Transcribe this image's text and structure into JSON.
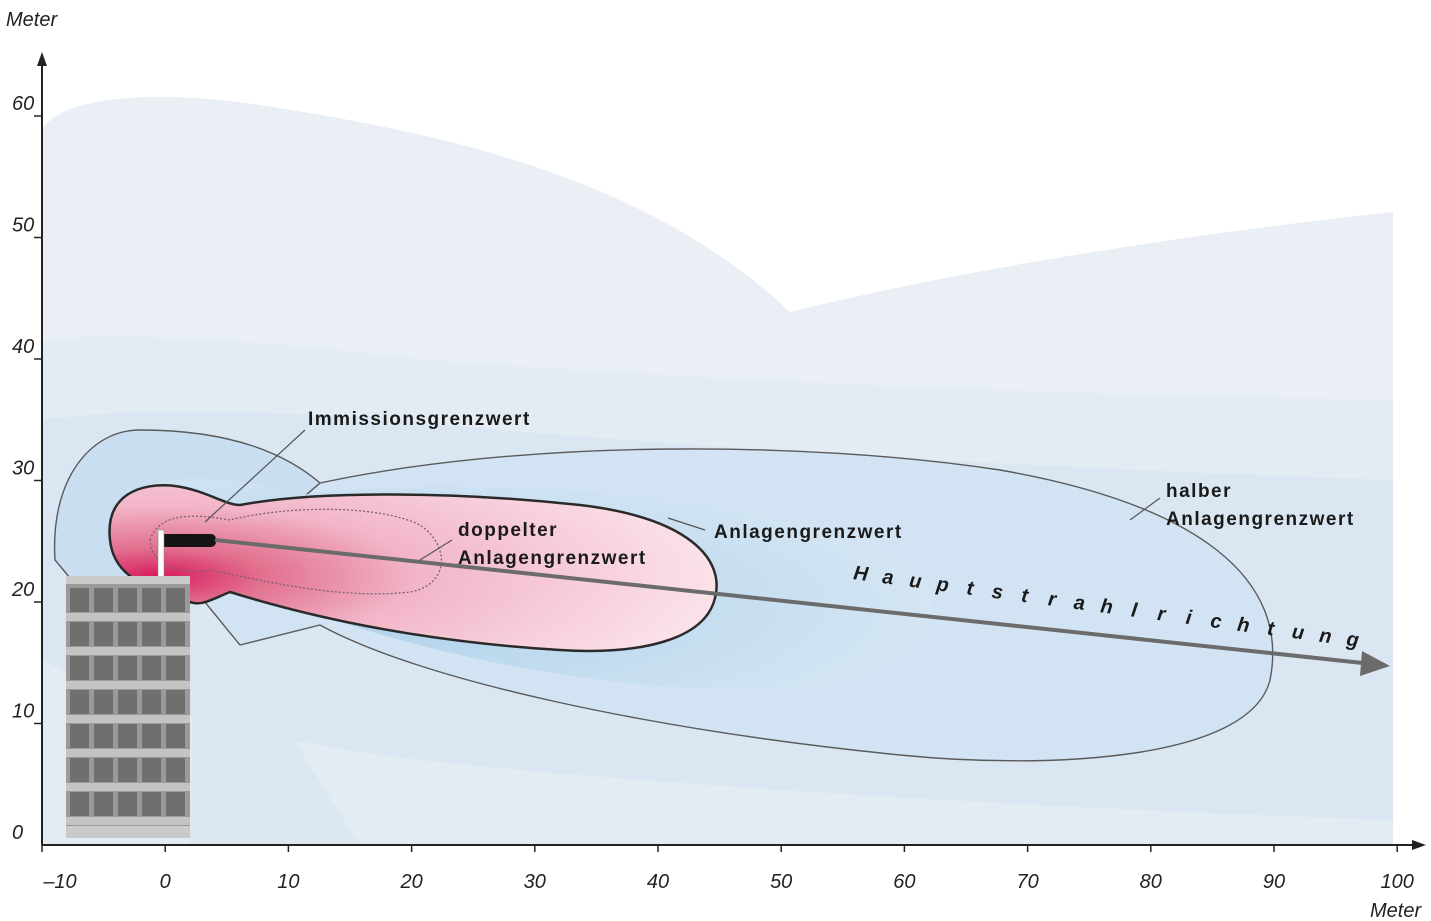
{
  "axes": {
    "y_unit": "Meter",
    "x_unit": "Meter",
    "x_ticks": [
      "–10",
      "0",
      "10",
      "20",
      "30",
      "40",
      "50",
      "60",
      "70",
      "80",
      "90",
      "100"
    ],
    "y_ticks": [
      "0",
      "10",
      "20",
      "30",
      "40",
      "50",
      "60"
    ]
  },
  "labels": {
    "immission": "Immissionsgrenzwert",
    "double_1": "doppelter",
    "double_2": "Anlagengrenzwert",
    "anlage": "Anlagengrenzwert",
    "half_1": "halber",
    "half_2": "Anlagengrenzwert",
    "main_beam": "Hauptstrahlrichtung"
  },
  "colors": {
    "pale_field": "#e8eef4",
    "light_blue": "#d3e5f3",
    "mid_blue": "#bcd9ee",
    "pink_light": "#f9dfe6",
    "pink_mid": "#f2b6c8",
    "pink_dark": "#e2708f",
    "outline": "#3a3a3a",
    "arrow": "#6b6b6b",
    "building": "#8a8a8a"
  }
}
